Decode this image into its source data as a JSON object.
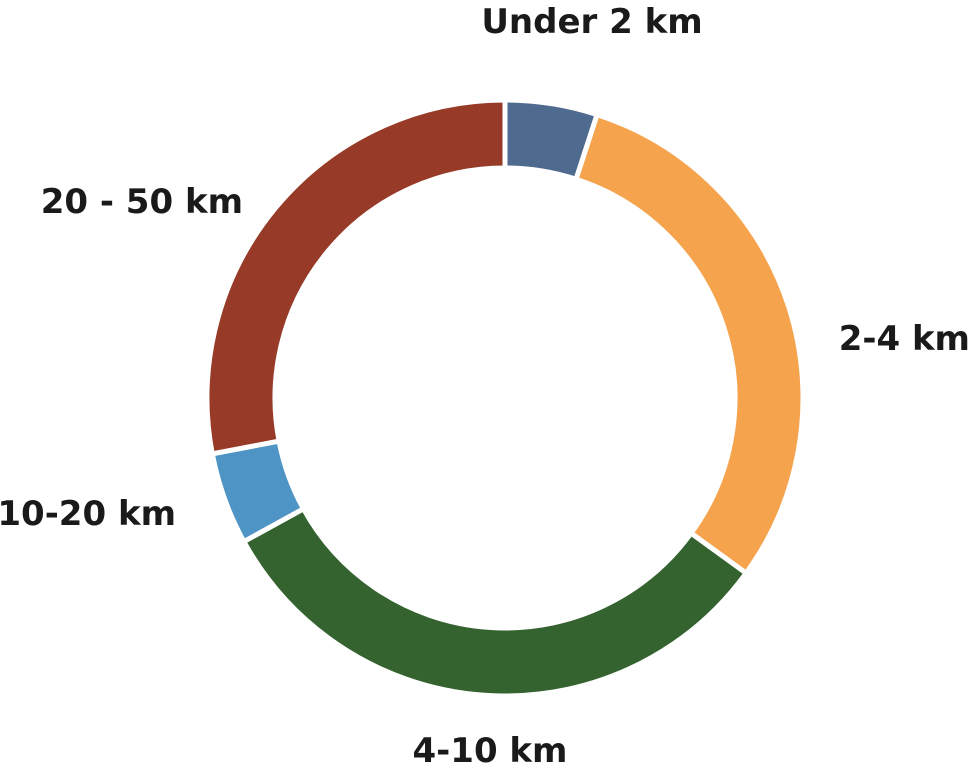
{
  "chart_data": {
    "type": "pie",
    "variant": "donut",
    "title": "",
    "categories": [
      "Under 2 km",
      "2-4 km",
      "4-10 km",
      "10-20 km",
      "20 - 50 km"
    ],
    "values": [
      5,
      30,
      32,
      5,
      28
    ],
    "unit": "percent (estimated)",
    "colors": [
      "#4f6a8f",
      "#f5a34d",
      "#356330",
      "#4e94c4",
      "#973a28"
    ],
    "start": "12 o'clock, clockwise",
    "legend": "none (direct labels)"
  }
}
